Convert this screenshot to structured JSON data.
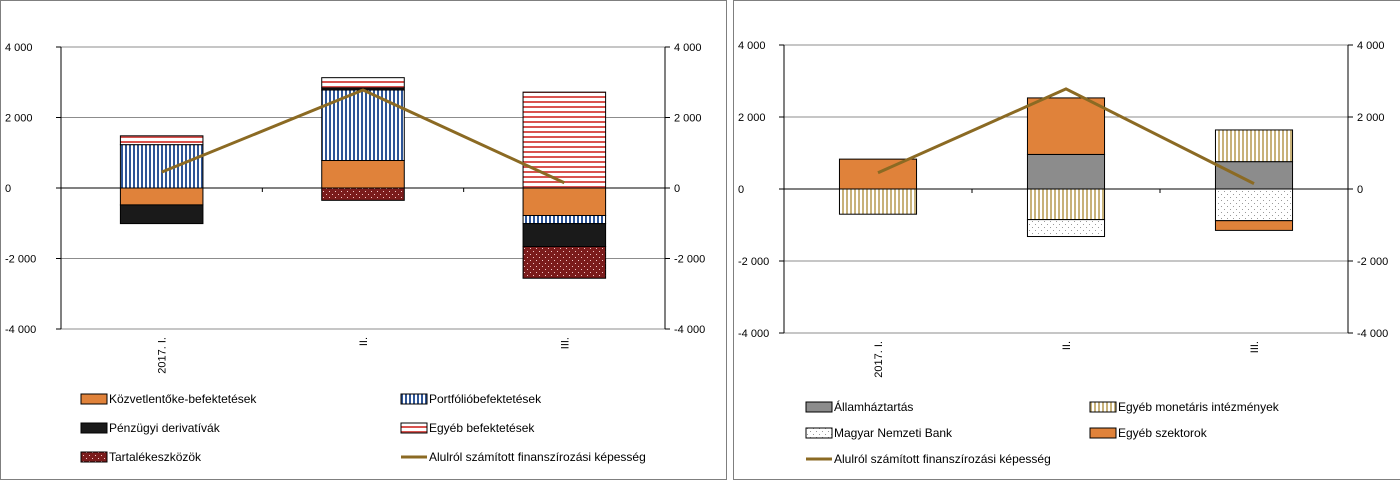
{
  "charts": [
    {
      "id": "left",
      "chart_data": {
        "type": "bar",
        "stacked": true,
        "categories": [
          "2017. I.",
          "II.",
          "III."
        ],
        "ylim": [
          -4000,
          4000
        ],
        "yticks": [
          4000,
          2000,
          0,
          -2000,
          -4000
        ],
        "ytick_labels": [
          "4 000",
          "2 000",
          "0",
          "-2 000",
          "-4 000"
        ],
        "y2ticks": [
          4000,
          2000,
          0,
          -2000,
          -4000
        ],
        "y2tick_labels": [
          "4 000",
          "2 000",
          "0",
          "-2 000",
          "-4 000"
        ],
        "series": [
          {
            "name": "Közvetlentőke-befektetések",
            "pattern": "solid-orange",
            "values": [
              -480,
              780,
              -780
            ]
          },
          {
            "name": "Portfólióbefektetések",
            "pattern": "vstripe-blue",
            "values": [
              1230,
              2000,
              -230
            ]
          },
          {
            "name": "Pénzügyi derivatívák",
            "pattern": "solid-black",
            "values": [
              -530,
              60,
              -650
            ]
          },
          {
            "name": "Egyéb befektetések",
            "pattern": "hstripe-red",
            "values": [
              250,
              290,
              2720
            ]
          },
          {
            "name": "Tartalékeszközök",
            "pattern": "dots-maroon",
            "values": [
              0,
              -350,
              -900
            ]
          }
        ],
        "line": {
          "name": "Alulról számított finanszírozási képesség",
          "values": [
            450,
            2780,
            150
          ],
          "color": "#8b6a23"
        },
        "legend_placement": "bottom",
        "grid": true
      }
    },
    {
      "id": "right",
      "chart_data": {
        "type": "bar",
        "stacked": true,
        "categories": [
          "2017. I.",
          "II.",
          "III."
        ],
        "ylim": [
          -4000,
          4000
        ],
        "yticks": [
          4000,
          2000,
          0,
          -2000,
          -4000
        ],
        "ytick_labels": [
          "4 000",
          "2 000",
          "0",
          "-2 000",
          "-4 000"
        ],
        "y2ticks": [
          4000,
          2000,
          0,
          -2000,
          -4000
        ],
        "y2tick_labels": [
          "4 000",
          "2 000",
          "0",
          "-2 000",
          "-4 000"
        ],
        "series": [
          {
            "name": "Államháztartás",
            "pattern": "solid-gray",
            "values": [
              0,
              960,
              760
            ]
          },
          {
            "name": "Egyéb monetáris intézmények",
            "pattern": "vstripe-tan",
            "values": [
              -700,
              -850,
              880
            ]
          },
          {
            "name": "Magyar Nemzeti Bank",
            "pattern": "dots-white",
            "values": [
              0,
              -470,
              -880
            ]
          },
          {
            "name": "Egyéb szektorok",
            "pattern": "solid-orange",
            "values": [
              830,
              1570,
              -270
            ]
          }
        ],
        "line": {
          "name": "Alulról számított finanszírozási képesség",
          "values": [
            450,
            2780,
            150
          ],
          "color": "#8b6a23"
        },
        "legend_placement": "bottom",
        "grid": true
      }
    }
  ]
}
